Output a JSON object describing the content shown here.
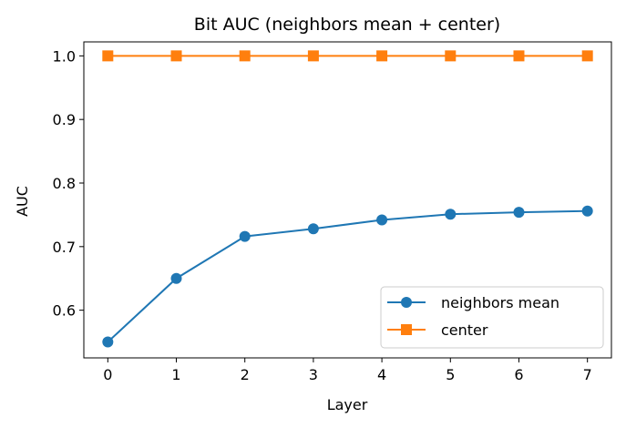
{
  "chart_data": {
    "type": "line",
    "title": "Bit AUC (neighbors mean + center)",
    "xlabel": "Layer",
    "ylabel": "AUC",
    "x": [
      0,
      1,
      2,
      3,
      4,
      5,
      6,
      7
    ],
    "xticks": [
      "0",
      "1",
      "2",
      "3",
      "4",
      "5",
      "6",
      "7"
    ],
    "yticks": [
      "0.6",
      "0.7",
      "0.8",
      "0.9",
      "1.0"
    ],
    "ylim": [
      0.525,
      1.022
    ],
    "xlim": [
      -0.35,
      7.35
    ],
    "grid": false,
    "legend_position": "lower-right",
    "series": [
      {
        "name": "neighbors mean",
        "marker": "circle",
        "color": "#1f77b4",
        "values": [
          0.55,
          0.65,
          0.716,
          0.728,
          0.742,
          0.751,
          0.754,
          0.756
        ]
      },
      {
        "name": "center",
        "marker": "square",
        "color": "#ff7f0e",
        "values": [
          1.0,
          1.0,
          1.0,
          1.0,
          1.0,
          1.0,
          1.0,
          1.0
        ]
      }
    ]
  }
}
